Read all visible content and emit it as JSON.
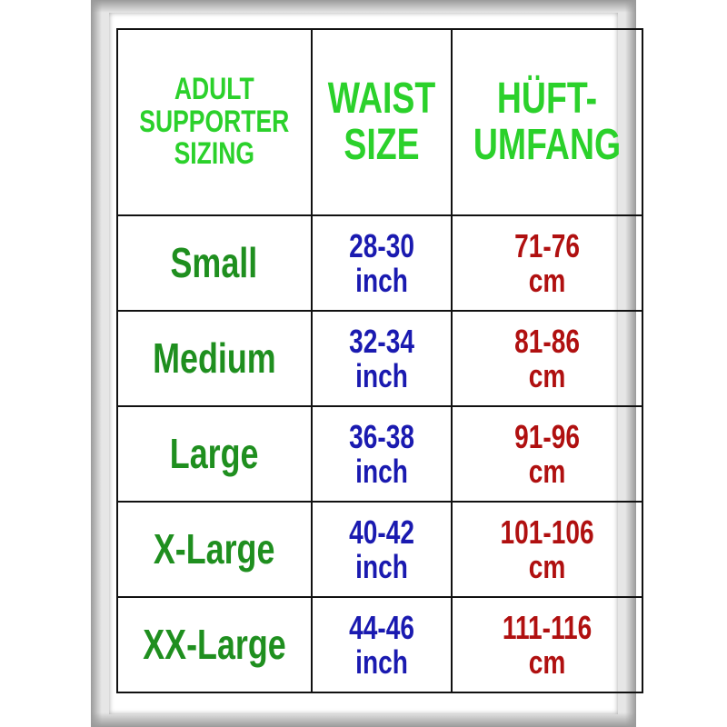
{
  "header": {
    "col1": [
      "ADULT",
      "SUPPORTER",
      "SIZING"
    ],
    "col2": [
      "WAIST",
      "SIZE"
    ],
    "col3": [
      "HÜFT-",
      "UMFANG"
    ]
  },
  "rows": [
    {
      "size": "Small",
      "waist": "28-30",
      "waist_unit": "inch",
      "hip": "71-76",
      "hip_unit": "cm"
    },
    {
      "size": "Medium",
      "waist": "32-34",
      "waist_unit": "inch",
      "hip": "81-86",
      "hip_unit": "cm"
    },
    {
      "size": "Large",
      "waist": "36-38",
      "waist_unit": "inch",
      "hip": "91-96",
      "hip_unit": "cm"
    },
    {
      "size": "X-Large",
      "waist": "40-42",
      "waist_unit": "inch",
      "hip": "101-106",
      "hip_unit": "cm"
    },
    {
      "size": "XX-Large",
      "waist": "44-46",
      "waist_unit": "inch",
      "hip": "111-116",
      "hip_unit": "cm"
    }
  ],
  "colors": {
    "header": "#2bd12b",
    "size": "#1f8f1f",
    "waist": "#1a1ab0",
    "hip": "#b01010"
  }
}
